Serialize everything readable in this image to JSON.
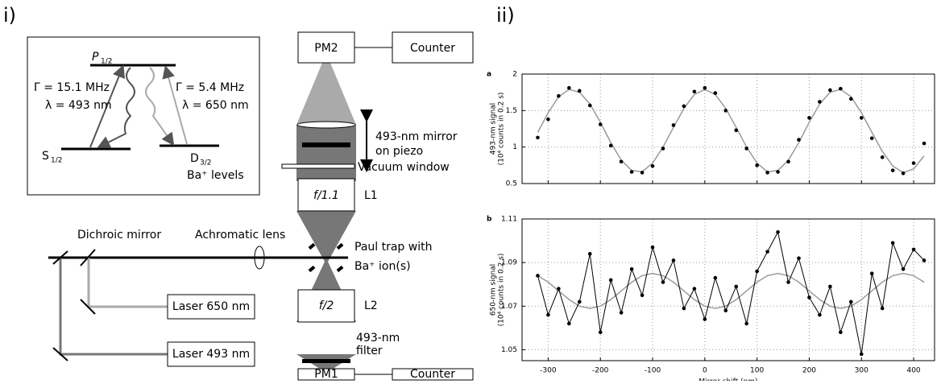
{
  "panels": {
    "left": "i)",
    "right": "ii)"
  },
  "levels": {
    "p": {
      "symbol": "P",
      "sub": "1/2"
    },
    "s": {
      "symbol": "S",
      "sub": "1/2"
    },
    "d": {
      "symbol": "D",
      "sub": "3/2"
    },
    "gamma1": "Γ = 15.1 MHz",
    "lambda1": "λ = 493 nm",
    "gamma2": "Γ = 5.4 MHz",
    "lambda2": "λ = 650 nm",
    "caption": "Ba⁺ levels"
  },
  "setup": {
    "pm2": "PM2",
    "counter_top": "Counter",
    "mirror": [
      "493-nm mirror",
      "on piezo"
    ],
    "window": "Vacuum window",
    "l1_lens": "f/1.1",
    "l1": "L1",
    "dichroic": "Dichroic mirror",
    "achromat": "Achromatic lens",
    "trap": [
      "Paul trap with",
      "Ba⁺ ion(s)"
    ],
    "laser650": "Laser 650 nm",
    "l2_lens": "f/2",
    "l2": "L2",
    "filter": [
      "493-nm",
      "filter"
    ],
    "laser493": "Laser 493 nm",
    "pm1": "PM1",
    "counter_bottom": "Counter"
  },
  "chart_data": [
    {
      "type": "line",
      "panel": "a",
      "ylabel": [
        "493-nm signal",
        "(10⁴ counts in 0.2 s)"
      ],
      "x": [
        -320,
        -300,
        -280,
        -260,
        -240,
        -220,
        -200,
        -180,
        -160,
        -140,
        -120,
        -100,
        -80,
        -60,
        -40,
        -20,
        0,
        20,
        40,
        60,
        80,
        100,
        120,
        140,
        160,
        180,
        200,
        220,
        240,
        260,
        280,
        300,
        320,
        340,
        360,
        380,
        400,
        420
      ],
      "series": [
        {
          "color": "#999999",
          "mode": "lines",
          "values": [
            1.2,
            1.47,
            1.69,
            1.79,
            1.75,
            1.59,
            1.34,
            1.06,
            0.82,
            0.68,
            0.66,
            0.78,
            1.0,
            1.27,
            1.53,
            1.72,
            1.79,
            1.72,
            1.53,
            1.27,
            1.0,
            0.78,
            0.66,
            0.68,
            0.82,
            1.06,
            1.34,
            1.59,
            1.75,
            1.79,
            1.69,
            1.47,
            1.2,
            0.94,
            0.74,
            0.65,
            0.7,
            0.88
          ]
        },
        {
          "color": "#000000",
          "mode": "markers",
          "values": [
            1.13,
            1.38,
            1.7,
            1.81,
            1.77,
            1.57,
            1.31,
            1.02,
            0.8,
            0.66,
            0.65,
            0.74,
            0.98,
            1.3,
            1.56,
            1.76,
            1.81,
            1.74,
            1.5,
            1.23,
            0.98,
            0.75,
            0.65,
            0.66,
            0.8,
            1.1,
            1.4,
            1.62,
            1.78,
            1.8,
            1.66,
            1.4,
            1.12,
            0.86,
            0.68,
            0.64,
            0.78,
            1.05
          ]
        }
      ],
      "xlim": [
        -350,
        440
      ],
      "xticks": [
        -300,
        -200,
        -100,
        0,
        100,
        200,
        300,
        400
      ],
      "ylim": [
        0.5,
        2
      ],
      "yticks": [
        0.5,
        1,
        1.5,
        2
      ],
      "grid": true
    },
    {
      "type": "line",
      "panel": "b",
      "ylabel": [
        "650-nm signal",
        "(10⁴ counts in 0.2 s)"
      ],
      "xlabel": "Mirror shift (nm)",
      "x": [
        -320,
        -300,
        -280,
        -260,
        -240,
        -220,
        -200,
        -180,
        -160,
        -140,
        -120,
        -100,
        -80,
        -60,
        -40,
        -20,
        0,
        20,
        40,
        60,
        80,
        100,
        120,
        140,
        160,
        180,
        200,
        220,
        240,
        260,
        280,
        300,
        320,
        340,
        360,
        380,
        400,
        420
      ],
      "series": [
        {
          "color": "#999999",
          "mode": "lines",
          "values": [
            1.084,
            1.081,
            1.077,
            1.073,
            1.07,
            1.069,
            1.07,
            1.073,
            1.077,
            1.081,
            1.084,
            1.085,
            1.084,
            1.081,
            1.077,
            1.073,
            1.07,
            1.069,
            1.07,
            1.073,
            1.077,
            1.081,
            1.084,
            1.085,
            1.084,
            1.081,
            1.077,
            1.073,
            1.07,
            1.069,
            1.07,
            1.073,
            1.077,
            1.081,
            1.084,
            1.085,
            1.084,
            1.081
          ]
        },
        {
          "color": "#000000",
          "mode": "lines+markers",
          "values": [
            1.084,
            1.066,
            1.078,
            1.062,
            1.072,
            1.094,
            1.058,
            1.082,
            1.067,
            1.087,
            1.075,
            1.097,
            1.081,
            1.091,
            1.069,
            1.078,
            1.064,
            1.083,
            1.068,
            1.079,
            1.062,
            1.086,
            1.095,
            1.104,
            1.081,
            1.092,
            1.074,
            1.066,
            1.079,
            1.058,
            1.072,
            1.048,
            1.085,
            1.069,
            1.099,
            1.087,
            1.096,
            1.091
          ]
        }
      ],
      "xlim": [
        -350,
        440
      ],
      "xticks": [
        -300,
        -200,
        -100,
        0,
        100,
        200,
        300,
        400
      ],
      "ylim": [
        1.045,
        1.11
      ],
      "yticks": [
        1.05,
        1.07,
        1.09,
        1.11
      ],
      "grid": true
    }
  ]
}
